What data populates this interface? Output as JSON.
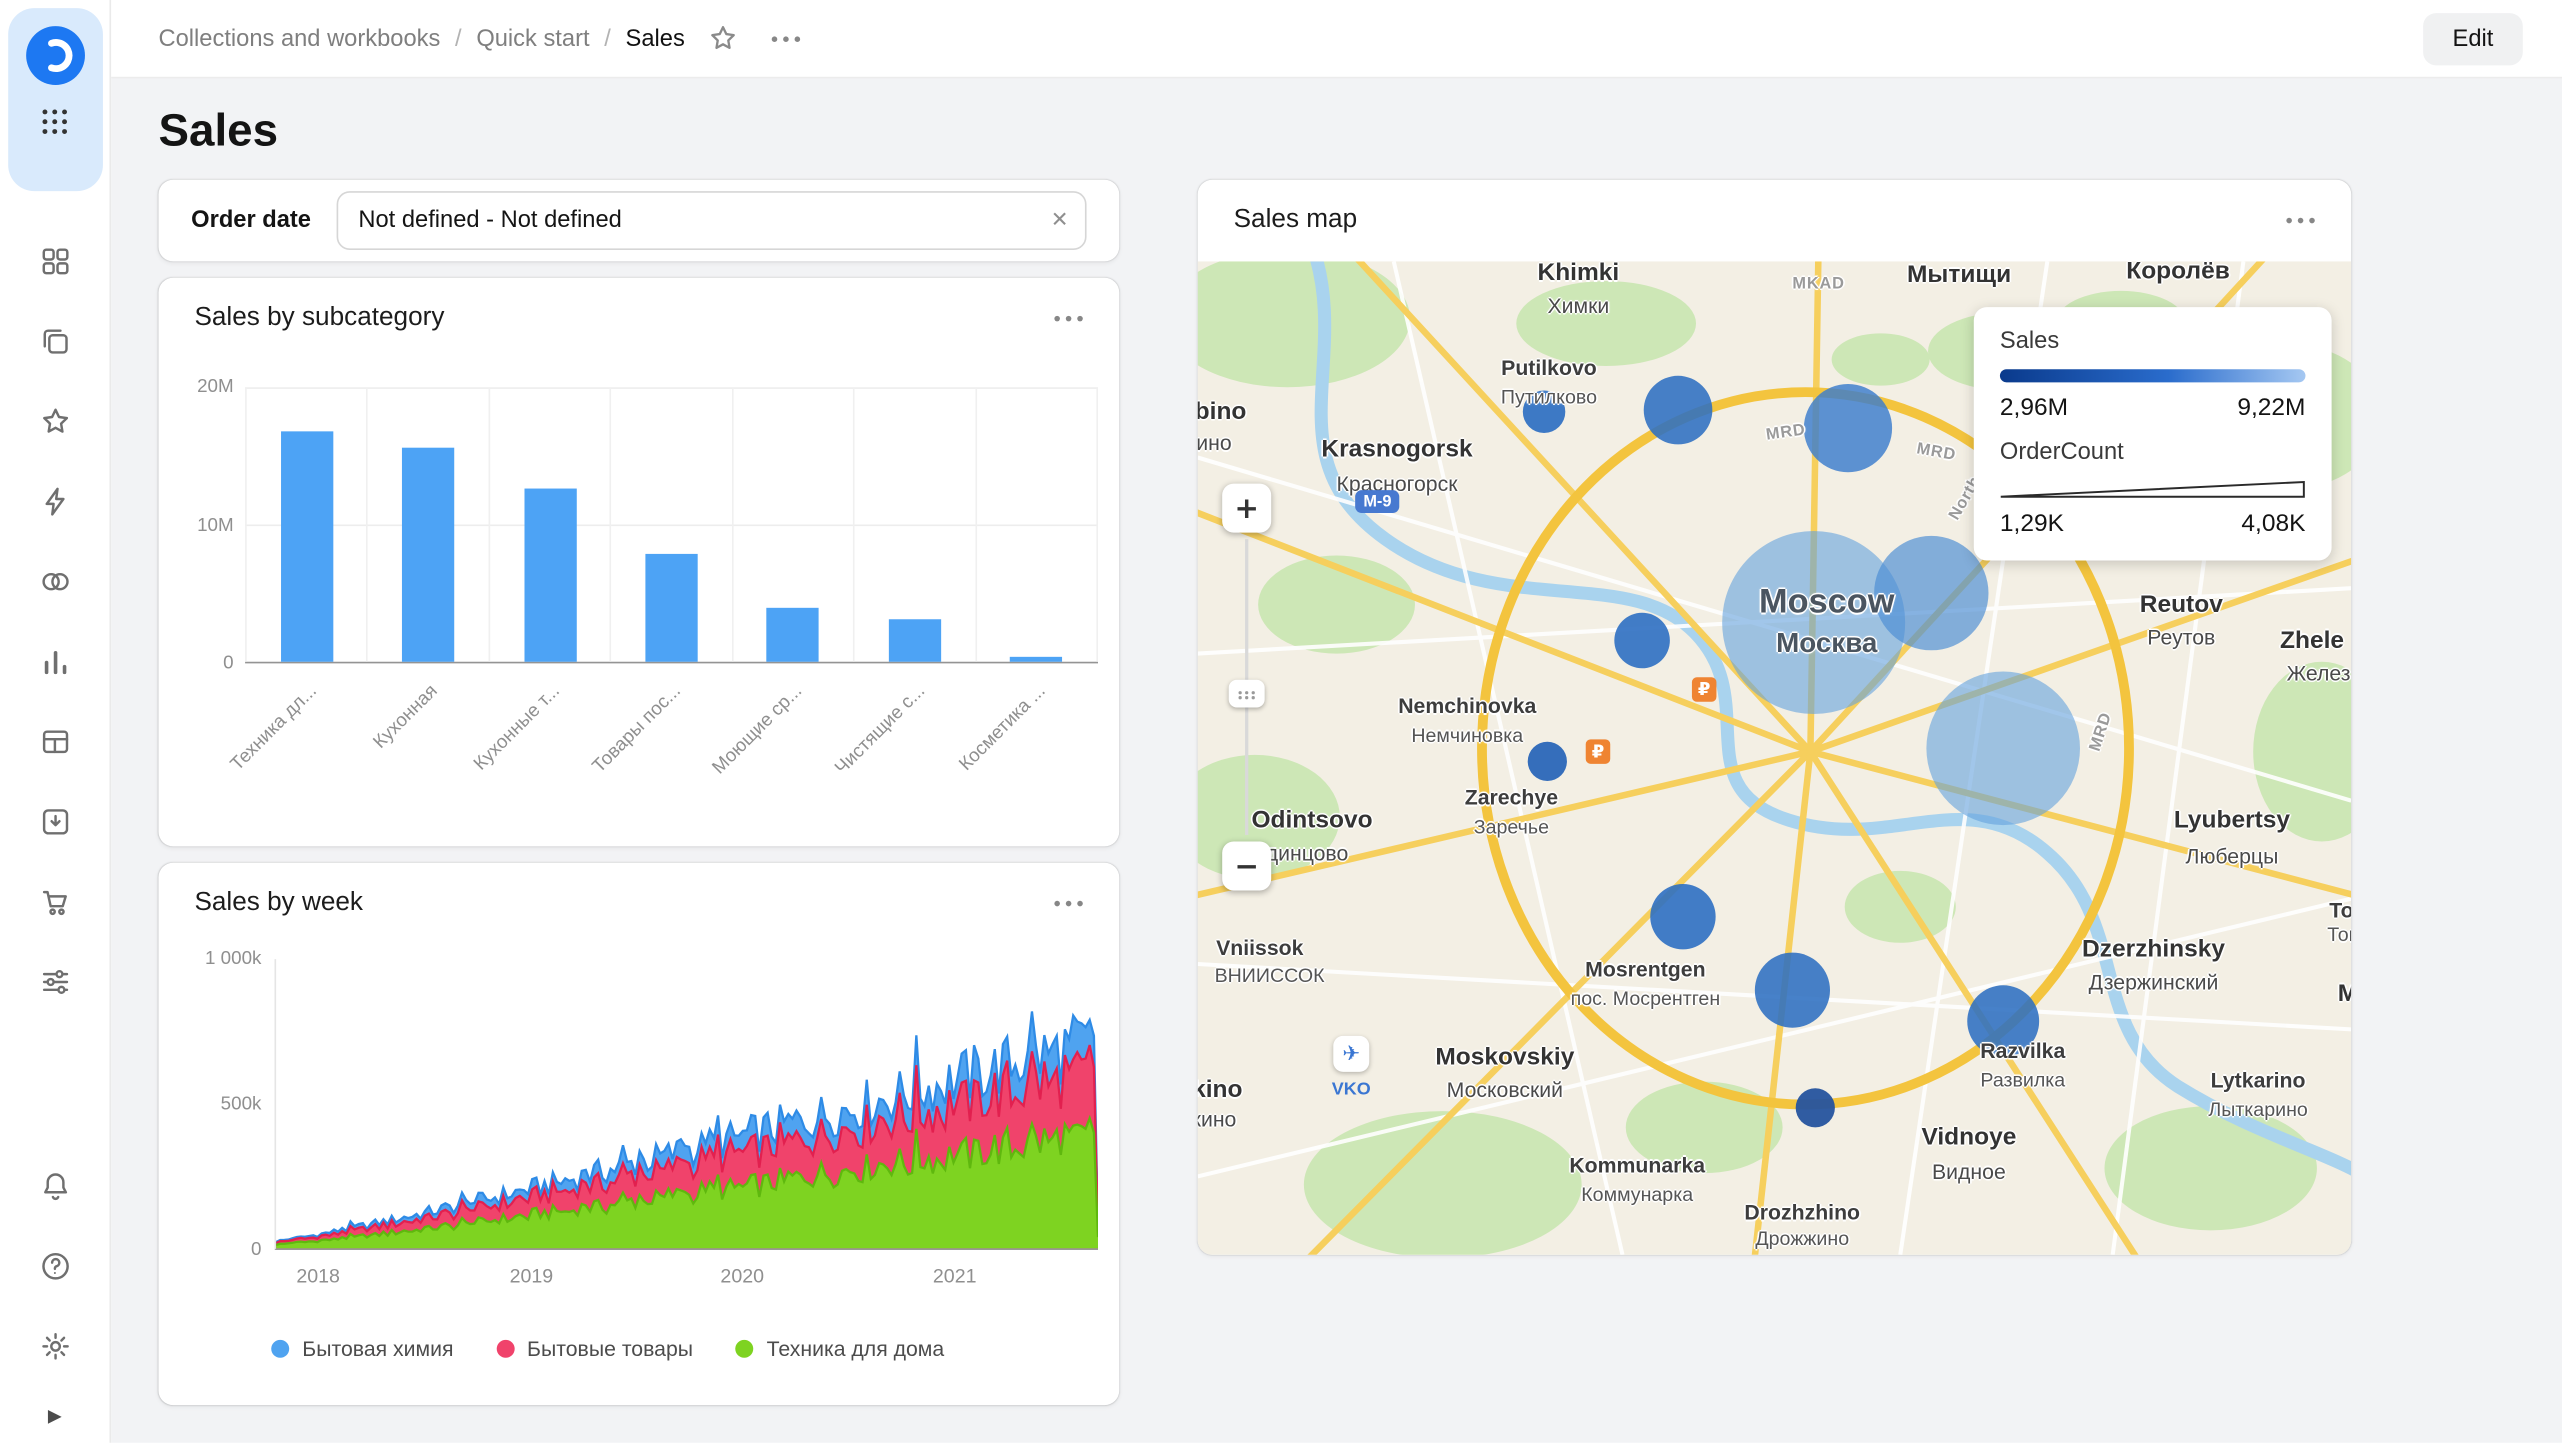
{
  "colors": {
    "accent_blue": "#4DA3F5",
    "main_background": "#f2f3f5",
    "legend_gradient": "linear-gradient(90deg,#0a3a8c,#2a6ccc 55%,#a5c8f2)"
  },
  "topbar": {
    "breadcrumbs": [
      "Collections and workbooks",
      "Quick start",
      "Sales"
    ],
    "separator": "/",
    "edit_label": "Edit"
  },
  "sidebar": {
    "icon_names": [
      "datalens-logo",
      "apps-grid-icon",
      "dashboards-icon",
      "collections-icon",
      "favorites-icon",
      "quick-actions-icon",
      "services-icon",
      "charts-icon",
      "datasets-icon",
      "connections-icon",
      "marketplace-icon",
      "preferences-icon",
      "notifications-icon",
      "help-icon",
      "settings-gear-icon",
      "expand-icon"
    ]
  },
  "icons": {
    "glyphs": {
      "close": "✕",
      "zoom_in": "+",
      "zoom_out": "−",
      "expand": "▶"
    }
  },
  "page": {
    "title": "Sales"
  },
  "filter": {
    "label": "Order date",
    "value": "Not defined - Not defined"
  },
  "chart_data": [
    {
      "type": "bar",
      "title": "Sales by subcategory",
      "categories": [
        "Техника дл...",
        "Кухонная",
        "Кухонные т...",
        "Товары пос...",
        "Моющие ср...",
        "Чистящие с...",
        "Косметика ..."
      ],
      "values": [
        16800000,
        15600000,
        12600000,
        7800000,
        3900000,
        3100000,
        300000
      ],
      "ylim": [
        0,
        20000000
      ],
      "yticks": [
        "20M",
        "10M",
        "0"
      ],
      "bar_color": "#4DA3F5",
      "grid": true,
      "legend": "none"
    },
    {
      "type": "area",
      "title": "Sales by week",
      "stacked": true,
      "x_year_labels": [
        "2018",
        "2019",
        "2020",
        "2021"
      ],
      "year_fracs": [
        0.053,
        0.312,
        0.568,
        0.826
      ],
      "ylim": [
        0,
        1000000
      ],
      "yticks": [
        "1 000k",
        "500k",
        "0"
      ],
      "series": [
        {
          "name": "Бытовая химия",
          "color": "#4FA3F0",
          "line": "#2E8BE6",
          "share": 0.15
        },
        {
          "name": "Бытовые товары",
          "color": "#F0436B",
          "line": "#E2204F",
          "share": 0.3
        },
        {
          "name": "Техника для дома",
          "color": "#7ED321",
          "line": "#5FB80E",
          "share": 0.55
        }
      ],
      "gen": {
        "weeks": 200,
        "start_total": 25000,
        "end_total": 720000,
        "noise": 0.18,
        "spike": 1.15,
        "final_drop": 0.1
      },
      "note": "stacked weekly sales rising from ~25k in 2018 to ~800k peaks in late 2021, sharp drop at last week",
      "legend_position": "bottom"
    },
    {
      "type": "map",
      "title": "Sales map",
      "legend": {
        "sales_label": "Sales",
        "sales_min": "2,96M",
        "sales_max": "9,22M",
        "ordercount_label": "OrderCount",
        "ordercount_min": "1,29K",
        "ordercount_max": "4,08K"
      },
      "bubbles": [
        {
          "x": 212,
          "y": 92,
          "r": 13,
          "c": "#2e6fc2",
          "o": 0.92
        },
        {
          "x": 294,
          "y": 91,
          "r": 21,
          "c": "#2e6fc2",
          "o": 0.88
        },
        {
          "x": 398,
          "y": 102,
          "r": 27,
          "c": "#3a7ccd",
          "o": 0.82
        },
        {
          "x": 272,
          "y": 232,
          "r": 17,
          "c": "#2e6fc2",
          "o": 0.9
        },
        {
          "x": 377,
          "y": 221,
          "r": 56,
          "c": "#64a2de",
          "o": 0.6
        },
        {
          "x": 449,
          "y": 203,
          "r": 35,
          "c": "#4c8ed4",
          "o": 0.68
        },
        {
          "x": 214,
          "y": 306,
          "r": 12,
          "c": "#2a66b8",
          "o": 0.95
        },
        {
          "x": 493,
          "y": 298,
          "r": 47,
          "c": "#64a2de",
          "o": 0.6
        },
        {
          "x": 297,
          "y": 401,
          "r": 20,
          "c": "#2e6fc2",
          "o": 0.9
        },
        {
          "x": 364,
          "y": 446,
          "r": 23,
          "c": "#2e6fc2",
          "o": 0.88
        },
        {
          "x": 493,
          "y": 465,
          "r": 22,
          "c": "#2e6fc2",
          "o": 0.88
        },
        {
          "x": 378,
          "y": 518,
          "r": 12,
          "c": "#25539e",
          "o": 0.95
        }
      ],
      "labels": [
        {
          "x": 233,
          "y": 7,
          "t": "Khimki",
          "cls": "en-lg"
        },
        {
          "x": 233,
          "y": 27,
          "t": "Химки",
          "cls": "ru"
        },
        {
          "x": 215,
          "y": 65,
          "t": "Putilkovo",
          "cls": "en"
        },
        {
          "x": 215,
          "y": 83,
          "t": "Путилково",
          "cls": "ru-sm"
        },
        {
          "x": 600,
          "y": 6,
          "t": "Королёв",
          "cls": "en-lg"
        },
        {
          "x": 466,
          "y": 8,
          "t": "Мытищи",
          "cls": "en-lg"
        },
        {
          "x": 380,
          "y": 14,
          "t": "MKAD",
          "cls": "road"
        },
        {
          "x": 560,
          "y": 120,
          "t": "MKAD",
          "cls": "road",
          "rot": 52
        },
        {
          "x": 122,
          "y": 115,
          "t": "Krasnogorsk",
          "cls": "en-lg"
        },
        {
          "x": 122,
          "y": 136,
          "t": "Красногорск",
          "cls": "ru"
        },
        {
          "x": 14,
          "y": 92,
          "t": "bino",
          "cls": "en-lg"
        },
        {
          "x": 10,
          "y": 111,
          "t": "ино",
          "cls": "ru"
        },
        {
          "x": 360,
          "y": 105,
          "t": "MRD",
          "cls": "road",
          "rot": -8
        },
        {
          "x": 452,
          "y": 117,
          "t": "MRD",
          "cls": "road",
          "rot": 10
        },
        {
          "x": 470,
          "y": 145,
          "t": "North",
          "cls": "road",
          "rot": -60
        },
        {
          "x": 385,
          "y": 209,
          "t": "Moscow",
          "cls": "city-en"
        },
        {
          "x": 385,
          "y": 234,
          "t": "Москва",
          "cls": "city-ru"
        },
        {
          "x": 602,
          "y": 210,
          "t": "Reutov",
          "cls": "en-lg"
        },
        {
          "x": 602,
          "y": 230,
          "t": "Реутов",
          "cls": "ru"
        },
        {
          "x": 682,
          "y": 232,
          "t": "Zhele",
          "cls": "en-lg"
        },
        {
          "x": 686,
          "y": 252,
          "t": "Желез",
          "cls": "ru"
        },
        {
          "x": 165,
          "y": 272,
          "t": "Nemchinovka",
          "cls": "en"
        },
        {
          "x": 165,
          "y": 290,
          "t": "Немчиновка",
          "cls": "ru-sm"
        },
        {
          "x": 553,
          "y": 288,
          "t": "MRD",
          "cls": "road",
          "rot": -72
        },
        {
          "x": 192,
          "y": 328,
          "t": "Zarechye",
          "cls": "en"
        },
        {
          "x": 192,
          "y": 346,
          "t": "Заречье",
          "cls": "ru-sm"
        },
        {
          "x": 70,
          "y": 342,
          "t": "Odintsovo",
          "cls": "en-lg"
        },
        {
          "x": 62,
          "y": 362,
          "t": "Одинцово",
          "cls": "ru"
        },
        {
          "x": 633,
          "y": 342,
          "t": "Lyubertsy",
          "cls": "en-lg"
        },
        {
          "x": 633,
          "y": 364,
          "t": "Люберцы",
          "cls": "ru"
        },
        {
          "x": 700,
          "y": 397,
          "t": "To",
          "cls": "en"
        },
        {
          "x": 702,
          "y": 412,
          "t": "Том",
          "cls": "ru-sm"
        },
        {
          "x": 38,
          "y": 420,
          "t": "Vniissok",
          "cls": "en"
        },
        {
          "x": 44,
          "y": 437,
          "t": "ВНИИССОК",
          "cls": "ru-sm"
        },
        {
          "x": 274,
          "y": 433,
          "t": "Mosrentgen",
          "cls": "en"
        },
        {
          "x": 274,
          "y": 451,
          "t": "пос. Мосрентген",
          "cls": "ru-sm"
        },
        {
          "x": 585,
          "y": 421,
          "t": "Dzerzhinsky",
          "cls": "en-lg"
        },
        {
          "x": 585,
          "y": 441,
          "t": "Дзержинский",
          "cls": "ru"
        },
        {
          "x": 704,
          "y": 448,
          "t": "M",
          "cls": "en-lg"
        },
        {
          "x": 188,
          "y": 487,
          "t": "Moskovskiy",
          "cls": "en-lg"
        },
        {
          "x": 188,
          "y": 507,
          "t": "Московский",
          "cls": "ru"
        },
        {
          "x": 12,
          "y": 507,
          "t": "kino",
          "cls": "en-lg"
        },
        {
          "x": 10,
          "y": 525,
          "t": "кино",
          "cls": "ru"
        },
        {
          "x": 505,
          "y": 483,
          "t": "Razvilka",
          "cls": "en"
        },
        {
          "x": 505,
          "y": 501,
          "t": "Развилка",
          "cls": "ru-sm"
        },
        {
          "x": 649,
          "y": 501,
          "t": "Lytkarino",
          "cls": "en"
        },
        {
          "x": 649,
          "y": 519,
          "t": "Лыткарино",
          "cls": "ru-sm"
        },
        {
          "x": 472,
          "y": 536,
          "t": "Vidnoye",
          "cls": "en-lg"
        },
        {
          "x": 472,
          "y": 557,
          "t": "Видное",
          "cls": "ru"
        },
        {
          "x": 269,
          "y": 553,
          "t": "Kommunarka",
          "cls": "en"
        },
        {
          "x": 269,
          "y": 571,
          "t": "Коммунарка",
          "cls": "ru-sm"
        },
        {
          "x": 370,
          "y": 582,
          "t": "Drozhzhino",
          "cls": "en"
        },
        {
          "x": 370,
          "y": 598,
          "t": "Дрожжино",
          "cls": "ru-sm"
        }
      ],
      "badges": [
        {
          "x": 110,
          "y": 147,
          "t": "M-9",
          "type": "road"
        },
        {
          "x": 94,
          "y": 485,
          "t": "✈",
          "type": "plane"
        },
        {
          "x": 94,
          "y": 507,
          "t": "VKO",
          "type": "code"
        },
        {
          "x": 310,
          "y": 262,
          "t": "₽",
          "type": "ruble"
        },
        {
          "x": 245,
          "y": 300,
          "t": "₽",
          "type": "ruble"
        }
      ]
    }
  ]
}
